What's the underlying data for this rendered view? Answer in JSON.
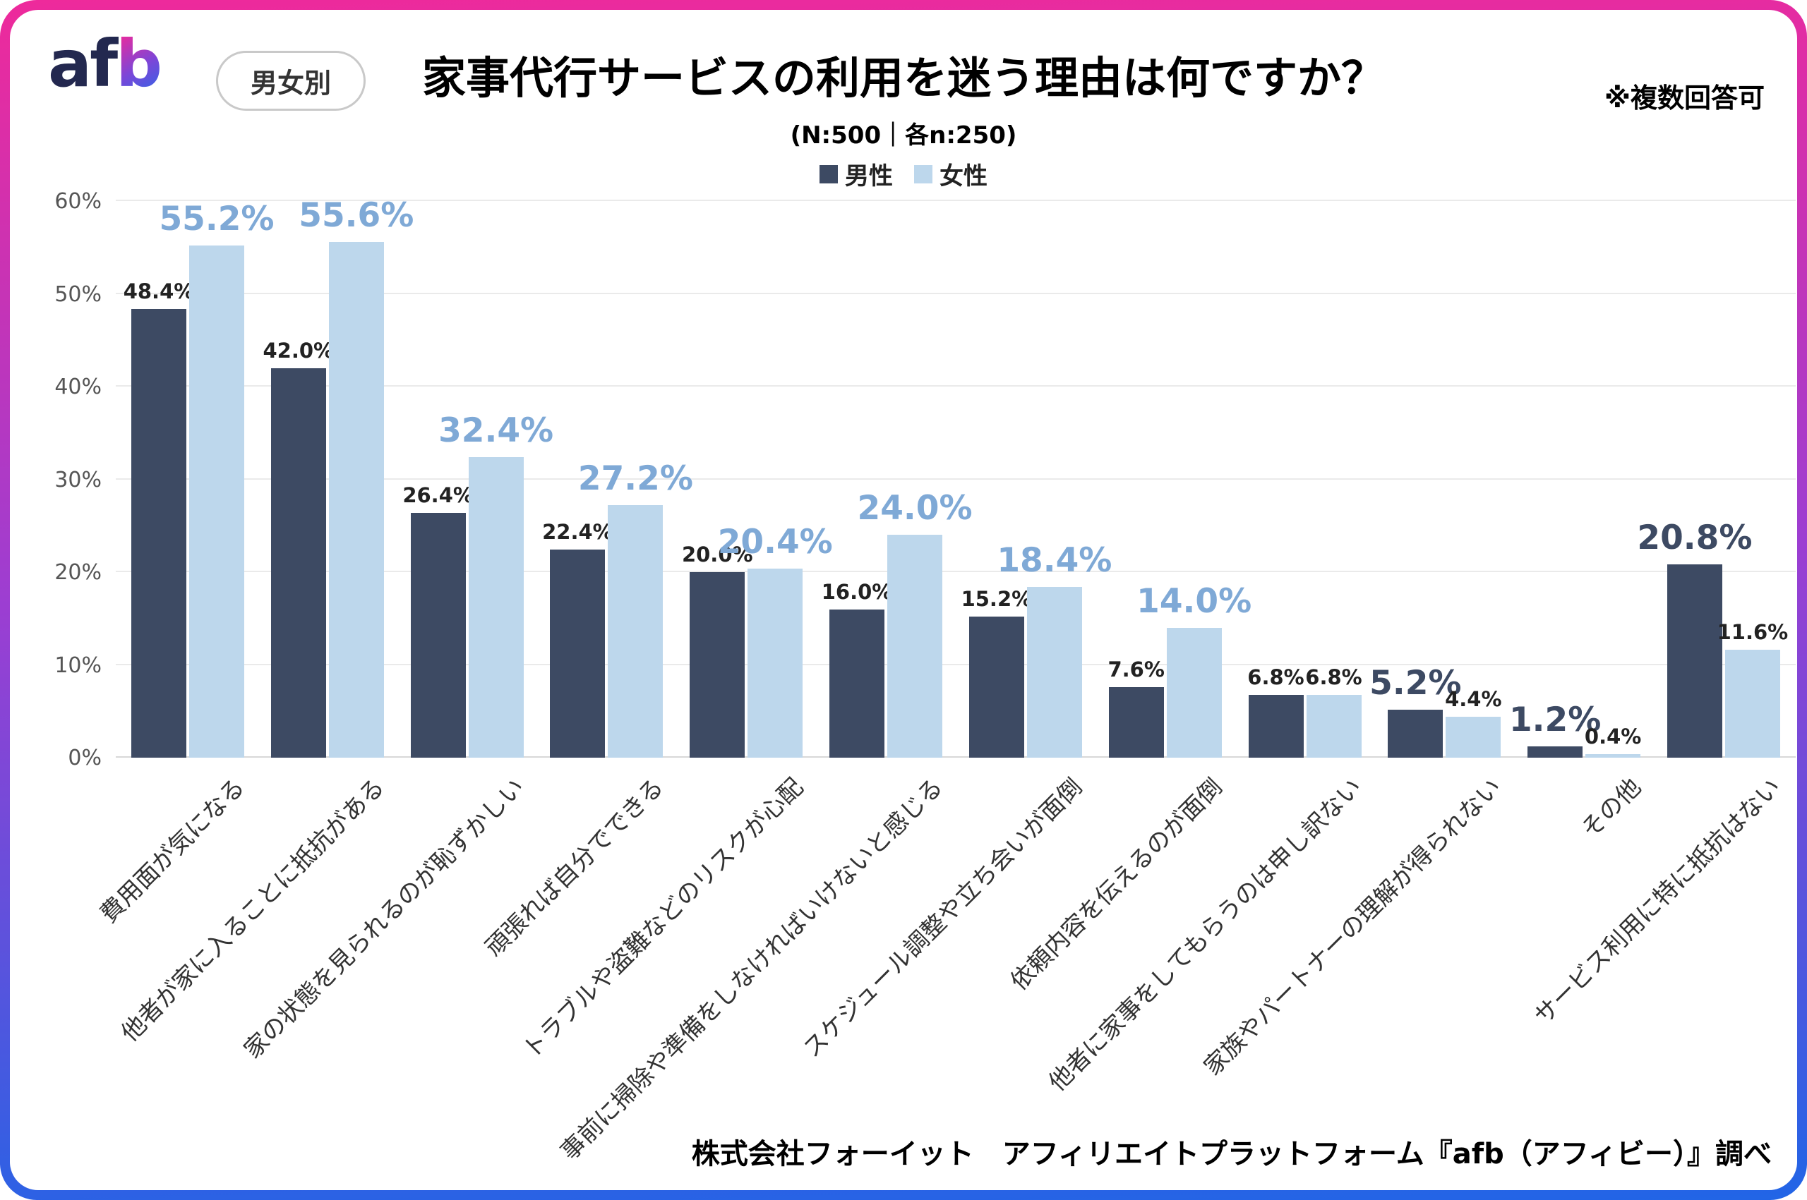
{
  "header": {
    "logo_af": "af",
    "logo_b": "b",
    "badge": "男女別",
    "title": "家事代行サービスの利用を迷う理由は何ですか？",
    "note": "※複数回答可",
    "subtitle": "(N:500｜各n:250)"
  },
  "legend": {
    "male": "男性",
    "female": "女性"
  },
  "footer": "株式会社フォーイット　アフィリエイトプラットフォーム『afb（アフィビー）』調べ",
  "colors": {
    "frame_top": "#ee2a9b",
    "frame_bottom": "#2165e6",
    "male_bar": "#3d4a63",
    "female_bar": "#bdd7ec",
    "male_emphasis": "#3d4a63",
    "female_emphasis": "#7fa9d6",
    "gridline": "#eaeaea"
  },
  "chart_data": {
    "type": "bar",
    "title": "家事代行サービスの利用を迷う理由は何ですか？",
    "subtitle": "(N:500｜各n:250)",
    "note": "※複数回答可",
    "ylim": [
      0,
      60
    ],
    "yticks": [
      0,
      10,
      20,
      30,
      40,
      50,
      60
    ],
    "grid": true,
    "legend_position": "top",
    "value_label_format": "one_decimal_percent",
    "emphasis_rule": "larger value of each pair is enlarged; male emphasized dark navy, female emphasized steel blue; ties not emphasized",
    "categories": [
      "費用面が気になる",
      "他者が家に入ることに抵抗がある",
      "家の状態を見られるのが恥ずかしい",
      "頑張れば自分でできる",
      "トラブルや盗難などのリスクが心配",
      "事前に掃除や準備をしなければいけないと感じる",
      "スケジュール調整や立ち会いが面倒",
      "依頼内容を伝えるのが面倒",
      "他者に家事をしてもらうのは申し訳ない",
      "家族やパートナーの理解が得られない",
      "その他",
      "サービス利用に特に抵抗はない"
    ],
    "series": [
      {
        "name": "男性",
        "color": "#3d4a63",
        "emphasis_color": "#3d4a63",
        "values": [
          48.4,
          42.0,
          26.4,
          22.4,
          20.0,
          16.0,
          15.2,
          7.6,
          6.8,
          5.2,
          1.2,
          20.8
        ]
      },
      {
        "name": "女性",
        "color": "#bdd7ec",
        "emphasis_color": "#7fa9d6",
        "values": [
          55.2,
          55.6,
          32.4,
          27.2,
          20.4,
          24.0,
          18.4,
          14.0,
          6.8,
          4.4,
          0.4,
          11.6
        ]
      }
    ]
  }
}
